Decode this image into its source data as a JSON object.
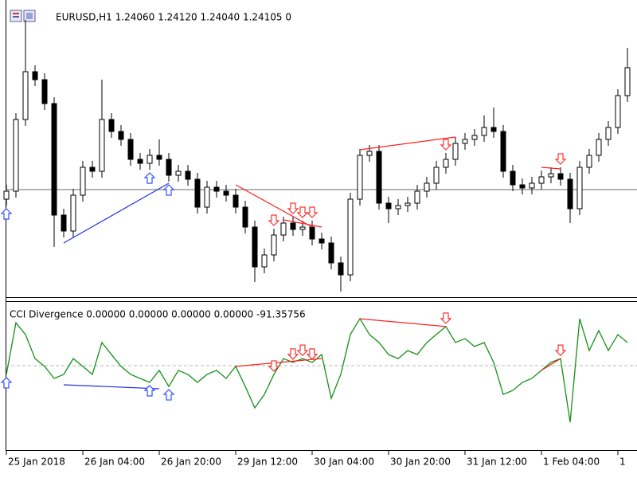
{
  "chart_data": [
    {
      "type": "candlestick",
      "title": "EURUSD,H1  1.24060 1.24120 1.24040 1.24105  0",
      "bull_color": "#ffffff",
      "bear_color": "#000000",
      "open": [
        1.2394,
        1.2399,
        1.2444,
        1.2474,
        1.2469,
        1.2454,
        1.2384,
        1.2374,
        1.23965,
        1.2414,
        1.24115,
        1.2444,
        1.24365,
        1.24315,
        1.2419,
        1.24165,
        1.24215,
        1.2419,
        1.2409,
        1.24115,
        1.24065,
        1.2389,
        1.24015,
        1.2399,
        1.23965,
        1.2389,
        1.23765,
        1.23515,
        1.2359,
        1.23715,
        1.2379,
        1.2375,
        1.23765,
        1.2369,
        1.23665,
        1.2354,
        1.23465,
        1.2394,
        1.24215,
        1.2424,
        1.23915,
        1.2388,
        1.239,
        1.23915,
        1.2399,
        1.2404,
        1.2414,
        1.2419,
        1.2429,
        1.24315,
        1.2434,
        1.2439,
        1.24365,
        1.24115,
        1.2403,
        1.2401,
        1.2404,
        1.2408,
        1.241,
        1.24065,
        1.2388,
        1.2414,
        1.24215,
        1.24315,
        1.2439,
        1.2459
      ],
      "high": [
        1.2403,
        1.2448,
        1.25065,
        1.2478,
        1.2473,
        1.2458,
        1.2388,
        1.24005,
        1.2418,
        1.2418,
        1.2469,
        1.2448,
        1.24405,
        1.24355,
        1.2423,
        1.24255,
        1.24315,
        1.2423,
        1.24155,
        1.24155,
        1.24105,
        1.24055,
        1.24055,
        1.2403,
        1.24005,
        1.2393,
        1.23805,
        1.2363,
        1.23755,
        1.2383,
        1.2383,
        1.23805,
        1.23805,
        1.2373,
        1.23705,
        1.2358,
        1.2398,
        1.24255,
        1.2428,
        1.2428,
        1.23955,
        1.2394,
        1.23955,
        1.2403,
        1.2408,
        1.2418,
        1.2423,
        1.2433,
        1.24355,
        1.2438,
        1.24465,
        1.24515,
        1.24405,
        1.24155,
        1.2407,
        1.2408,
        1.2412,
        1.2414,
        1.2414,
        1.24105,
        1.2418,
        1.24255,
        1.24355,
        1.2443,
        1.2463,
        1.2489
      ],
      "low": [
        1.239,
        1.2395,
        1.244,
        1.2465,
        1.245,
        1.2364,
        1.237,
        1.237,
        1.23925,
        1.24075,
        1.24075,
        1.24325,
        1.24275,
        1.2415,
        1.24125,
        1.24125,
        1.2415,
        1.2405,
        1.2405,
        1.24025,
        1.2385,
        1.2385,
        1.2395,
        1.23925,
        1.2385,
        1.23725,
        1.2342,
        1.23475,
        1.2355,
        1.23675,
        1.2371,
        1.2371,
        1.2365,
        1.23625,
        1.235,
        1.2336,
        1.23425,
        1.239,
        1.24175,
        1.23875,
        1.2379,
        1.2384,
        1.2386,
        1.23875,
        1.2395,
        1.24,
        1.241,
        1.2415,
        1.2425,
        1.24275,
        1.243,
        1.24325,
        1.24075,
        1.2399,
        1.2397,
        1.2397,
        1.24,
        1.2404,
        1.24025,
        1.2379,
        1.2384,
        1.241,
        1.24175,
        1.24275,
        1.2435,
        1.2455
      ],
      "close": [
        1.2399,
        1.2444,
        1.2474,
        1.2469,
        1.2454,
        1.2384,
        1.2374,
        1.23965,
        1.2414,
        1.24115,
        1.2444,
        1.24365,
        1.24315,
        1.2419,
        1.24165,
        1.24215,
        1.2419,
        1.2409,
        1.24115,
        1.24065,
        1.2389,
        1.24015,
        1.2399,
        1.23965,
        1.2389,
        1.23765,
        1.23515,
        1.2359,
        1.23715,
        1.2379,
        1.2375,
        1.23765,
        1.2369,
        1.23665,
        1.2354,
        1.23465,
        1.2394,
        1.24215,
        1.2424,
        1.23915,
        1.2388,
        1.239,
        1.23915,
        1.2399,
        1.2404,
        1.2414,
        1.2419,
        1.2429,
        1.24315,
        1.2434,
        1.2439,
        1.24365,
        1.24115,
        1.2403,
        1.2401,
        1.2404,
        1.2408,
        1.241,
        1.24065,
        1.2388,
        1.2414,
        1.24215,
        1.24315,
        1.2439,
        1.2459,
        1.24765
      ],
      "xlim": [
        0,
        66
      ],
      "ylim": [
        1.2333,
        1.2515
      ],
      "xticks": [
        {
          "value": 0,
          "label": "25 Jan 2018"
        },
        {
          "value": 8,
          "label": "26 Jan 04:00"
        },
        {
          "value": 16,
          "label": "26 Jan 20:00"
        },
        {
          "value": 24,
          "label": "29 Jan 12:00"
        },
        {
          "value": 32,
          "label": "30 Jan 04:00"
        },
        {
          "value": 40,
          "label": "30 Jan 20:00"
        },
        {
          "value": 48,
          "label": "31 Jan 12:00"
        },
        {
          "value": 56,
          "label": "1 Feb 04:00"
        },
        {
          "value": 64,
          "label": "1"
        }
      ],
      "hline": 1.24,
      "hline_color": "#b4b4b4",
      "arrow_colors": {
        "up": "#3050ff",
        "down": "#ff3030"
      },
      "up_arrows": [
        0,
        15,
        17
      ],
      "down_arrows": [
        28,
        30,
        31,
        32,
        46,
        58
      ],
      "lines": [
        {
          "color": "#2030e0",
          "x": [
            6,
            17
          ],
          "y": [
            1.23665,
            1.2404
          ]
        },
        {
          "color": "#ff2020",
          "x": [
            24,
            32
          ],
          "y": [
            1.2403,
            1.23765
          ]
        },
        {
          "color": "#ff2020",
          "x": [
            29,
            33
          ],
          "y": [
            1.2381,
            1.23765
          ]
        },
        {
          "color": "#ff2020",
          "x": [
            37,
            47
          ],
          "y": [
            1.2425,
            1.2433
          ]
        },
        {
          "color": "#ff2020",
          "x": [
            56,
            58
          ],
          "y": [
            1.2414,
            1.2413
          ]
        }
      ]
    },
    {
      "type": "line",
      "title": "CCI Divergence 0.00000 0.00000 0.00000 0.00000 -91.35756",
      "color": "#159015",
      "values": [
        -37,
        182,
        132,
        30,
        -3,
        -54,
        -37,
        30,
        -3,
        -37,
        98,
        47,
        -3,
        -37,
        -54,
        -71,
        -20,
        -88,
        -20,
        -37,
        -71,
        -37,
        -20,
        -54,
        -3,
        -88,
        -179,
        -122,
        -37,
        30,
        14,
        30,
        14,
        47,
        -139,
        -37,
        132,
        199,
        132,
        98,
        47,
        30,
        64,
        47,
        98,
        132,
        166,
        98,
        115,
        81,
        98,
        14,
        -122,
        -105,
        -71,
        -54,
        -20,
        14,
        30,
        -240,
        199,
        64,
        149,
        64,
        132,
        98
      ],
      "xlim": [
        0,
        66
      ],
      "ylim": [
        -250,
        250
      ],
      "hline": 0,
      "hline_color": "#b4b4b4",
      "arrow_colors": {
        "up": "#3050ff",
        "down": "#ff3030"
      },
      "up_arrows": [
        0,
        15,
        17
      ],
      "down_arrows": [
        28,
        30,
        31,
        32,
        46,
        58
      ],
      "lines": [
        {
          "color": "#2030e0",
          "x": [
            6,
            16
          ],
          "y": [
            -81,
            -98
          ]
        },
        {
          "color": "#ff2020",
          "x": [
            24,
            33
          ],
          "y": [
            -3,
            30
          ]
        },
        {
          "color": "#ff2020",
          "x": [
            37,
            46
          ],
          "y": [
            199,
            166
          ]
        },
        {
          "color": "#ff2020",
          "x": [
            56,
            58
          ],
          "y": [
            -20,
            30
          ]
        }
      ]
    }
  ]
}
